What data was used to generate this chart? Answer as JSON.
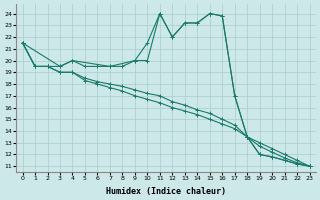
{
  "xlabel": "Humidex (Indice chaleur)",
  "bg_color": "#cce8e8",
  "grid_color": "#aacccc",
  "line_color": "#1a7a6a",
  "xlim": [
    -0.5,
    23.5
  ],
  "ylim": [
    10.5,
    24.8
  ],
  "xticks": [
    0,
    1,
    2,
    3,
    4,
    5,
    6,
    7,
    8,
    9,
    10,
    11,
    12,
    13,
    14,
    15,
    16,
    17,
    18,
    19,
    20,
    21,
    22,
    23
  ],
  "yticks": [
    11,
    12,
    13,
    14,
    15,
    16,
    17,
    18,
    19,
    20,
    21,
    22,
    23,
    24
  ],
  "series_upper_x": [
    0,
    1,
    2,
    3,
    4,
    5,
    6,
    7,
    8,
    9,
    10,
    11,
    12,
    13,
    14,
    15,
    16,
    17,
    18,
    19,
    20,
    21,
    22,
    23
  ],
  "series_upper_y": [
    21.5,
    19.5,
    19.5,
    19.5,
    20.0,
    19.5,
    19.5,
    19.5,
    19.5,
    20.0,
    21.5,
    24.0,
    22.0,
    23.2,
    23.2,
    24.0,
    23.8,
    17.0,
    13.5,
    12.0,
    11.8,
    11.5,
    11.2,
    11.0
  ],
  "series_mid1_x": [
    0,
    1,
    2,
    3,
    4,
    5,
    6,
    7,
    8,
    9,
    10,
    11,
    12,
    13,
    14,
    15,
    16,
    17,
    18,
    19,
    20,
    21,
    22,
    23
  ],
  "series_mid1_y": [
    21.5,
    19.5,
    19.5,
    19.0,
    19.0,
    18.5,
    18.2,
    18.0,
    17.8,
    17.5,
    17.2,
    17.0,
    16.5,
    16.2,
    15.8,
    15.5,
    15.0,
    14.5,
    13.5,
    13.0,
    12.5,
    12.0,
    11.5,
    11.0
  ],
  "series_mid2_x": [
    0,
    1,
    2,
    3,
    4,
    5,
    6,
    7,
    8,
    9,
    10,
    11,
    12,
    13,
    14,
    15,
    16,
    17,
    18,
    19,
    20,
    21,
    22,
    23
  ],
  "series_mid2_y": [
    21.5,
    19.5,
    19.5,
    19.0,
    19.0,
    18.3,
    18.0,
    17.7,
    17.4,
    17.0,
    16.7,
    16.4,
    16.0,
    15.7,
    15.4,
    15.0,
    14.6,
    14.2,
    13.5,
    12.7,
    12.2,
    11.7,
    11.3,
    11.0
  ],
  "series_zigzag_x": [
    0,
    3,
    4,
    7,
    9,
    10,
    11,
    12,
    13,
    14,
    15,
    16,
    17,
    18,
    19,
    20,
    21,
    22,
    23
  ],
  "series_zigzag_y": [
    21.5,
    19.5,
    20.0,
    19.5,
    20.0,
    20.0,
    24.0,
    22.0,
    23.2,
    23.2,
    24.0,
    23.8,
    17.0,
    13.5,
    12.0,
    11.8,
    11.5,
    11.2,
    11.0
  ]
}
